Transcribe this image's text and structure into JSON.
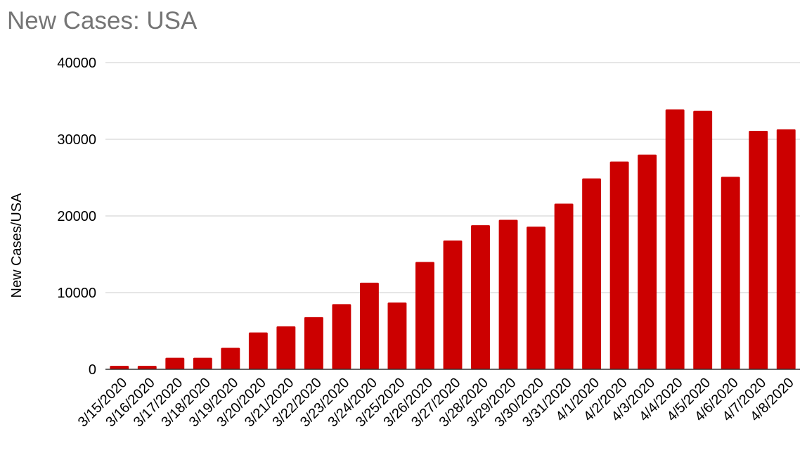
{
  "chart_data": {
    "type": "bar",
    "title": "New Cases: USA",
    "xlabel": "",
    "ylabel": "New Cases/USA",
    "ylim": [
      0,
      40000
    ],
    "yticks": [
      0,
      10000,
      20000,
      30000,
      40000
    ],
    "grid": true,
    "legend": "none",
    "bar_color": "#cc0000",
    "categories": [
      "3/15/2020",
      "3/16/2020",
      "3/17/2020",
      "3/18/2020",
      "3/19/2020",
      "3/20/2020",
      "3/21/2020",
      "3/22/2020",
      "3/23/2020",
      "3/24/2020",
      "3/25/2020",
      "3/26/2020",
      "3/27/2020",
      "3/28/2020",
      "3/29/2020",
      "3/30/2020",
      "3/31/2020",
      "4/1/2020",
      "4/2/2020",
      "4/3/2020",
      "4/4/2020",
      "4/5/2020",
      "4/6/2020",
      "4/7/2020",
      "4/8/2020"
    ],
    "values": [
      450,
      450,
      1500,
      1500,
      2800,
      4800,
      5600,
      6800,
      8500,
      11300,
      8700,
      14000,
      16800,
      18800,
      19500,
      18600,
      21600,
      24900,
      27100,
      28000,
      33900,
      33700,
      25100,
      31100,
      31300
    ]
  }
}
